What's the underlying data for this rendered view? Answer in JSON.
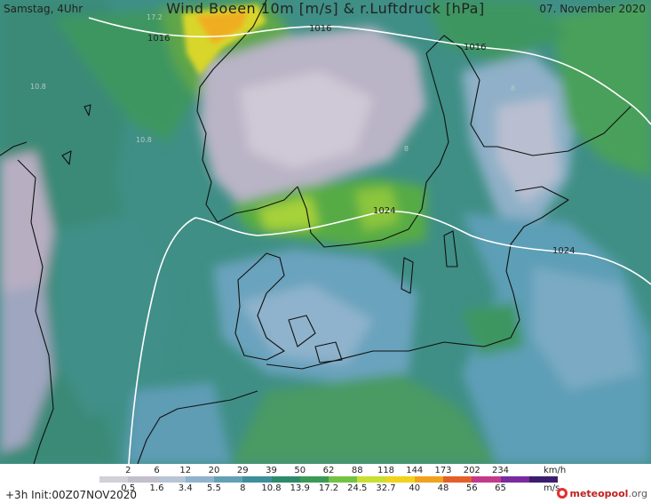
{
  "header": {
    "left": "Samstag, 4Uhr",
    "title": "Wind Boeen 10m [m/s] & r.Luftdruck [hPa]",
    "date": "07. November 2020"
  },
  "isobars": [
    {
      "value": "1016"
    },
    {
      "value": "1016"
    },
    {
      "value": "1016"
    },
    {
      "value": "1024"
    },
    {
      "value": "1024"
    }
  ],
  "contour_labels": [
    "17.2",
    "10.8",
    "10.8",
    "8",
    "8"
  ],
  "legend": {
    "kmh_values": [
      "2",
      "6",
      "12",
      "20",
      "29",
      "39",
      "50",
      "62",
      "88",
      "118",
      "144",
      "173",
      "202",
      "234"
    ],
    "kmh_unit": "km/h",
    "ms_values": [
      "0.5",
      "1.6",
      "3.4",
      "5.5",
      "8",
      "10.8",
      "13.9",
      "17.2",
      "24.5",
      "32.7",
      "40",
      "48",
      "56",
      "65"
    ],
    "ms_unit": "m/s",
    "colors": [
      "#d3d0d8",
      "#c2bfcb",
      "#b7c4d6",
      "#8fb3cc",
      "#63a0b8",
      "#3d8f9d",
      "#2e8a6c",
      "#3a9a55",
      "#74c244",
      "#c8df33",
      "#f2d21c",
      "#f0a21f",
      "#e4602a",
      "#c43a8a",
      "#7a2aa0",
      "#3b1d6b"
    ]
  },
  "footer": {
    "init": "+3h Init:00Z07NOV2020",
    "logo_name": "meteopool",
    "logo_tld": ".org"
  }
}
